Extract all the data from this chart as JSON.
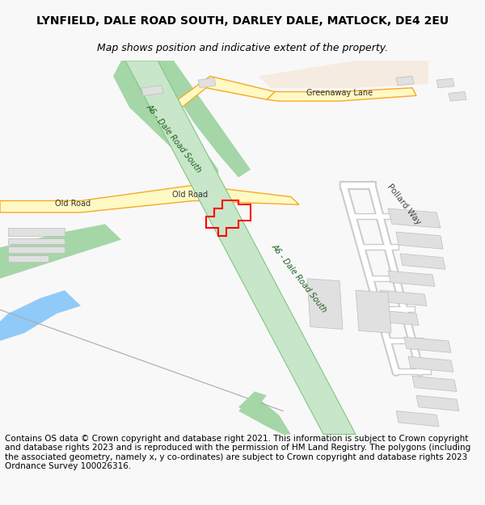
{
  "title": "LYNFIELD, DALE ROAD SOUTH, DARLEY DALE, MATLOCK, DE4 2EU",
  "subtitle": "Map shows position and indicative extent of the property.",
  "footer": "Contains OS data © Crown copyright and database right 2021. This information is subject to Crown copyright and database rights 2023 and is reproduced with the permission of HM Land Registry. The polygons (including the associated geometry, namely x, y co-ordinates) are subject to Crown copyright and database rights 2023 Ordnance Survey 100026316.",
  "bg_color": "#f8f8f8",
  "map_bg": "#ffffff",
  "title_fontsize": 10,
  "subtitle_fontsize": 9,
  "footer_fontsize": 7.5,
  "a6_road_color": "#c8e6c9",
  "a6_road_border_color": "#81c784",
  "old_road_color": "#fff9c4",
  "old_road_border_color": "#f9a825",
  "greenaway_color": "#fff9c4",
  "greenaway_border_color": "#f9a825",
  "building_color": "#e0e0e0",
  "building_border": "#bdbdbd",
  "river_color": "#90caf9",
  "vegetation_color": "#a5d6a7",
  "property_color": "red",
  "property_lw": 1.5,
  "a6_label": "A6 - Dale Road South",
  "old_road_label": "Old Road",
  "greenaway_label": "Greenaway Lane",
  "pollard_label": "Pollard Way",
  "map_xlim": [
    0,
    600
  ],
  "map_ylim": [
    0,
    480
  ]
}
